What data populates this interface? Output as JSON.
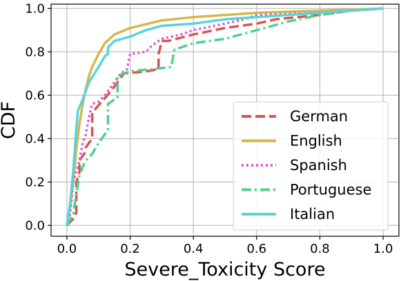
{
  "chart_data": {
    "type": "line",
    "xlabel": "Severe_Toxicity Score",
    "ylabel": "CDF",
    "xlim": [
      -0.05,
      1.05
    ],
    "ylim": [
      -0.05,
      1.02
    ],
    "xticks": [
      0.0,
      0.2,
      0.4,
      0.6,
      0.8,
      1.0
    ],
    "yticks": [
      0.0,
      0.2,
      0.4,
      0.6,
      0.8,
      1.0
    ],
    "xtick_labels": [
      "0.0",
      "0.2",
      "0.4",
      "0.6",
      "0.8",
      "1.0"
    ],
    "ytick_labels": [
      "0.0",
      "0.2",
      "0.4",
      "0.6",
      "0.8",
      "1.0"
    ],
    "grid": true,
    "legend_position": "bottom-right",
    "series": [
      {
        "name": "German",
        "color": "#d9534f",
        "style": "dashed",
        "points": [
          [
            0.0,
            0.0
          ],
          [
            0.02,
            0.03
          ],
          [
            0.03,
            0.06
          ],
          [
            0.03,
            0.2
          ],
          [
            0.035,
            0.22
          ],
          [
            0.04,
            0.25
          ],
          [
            0.04,
            0.3
          ],
          [
            0.055,
            0.33
          ],
          [
            0.06,
            0.36
          ],
          [
            0.08,
            0.4
          ],
          [
            0.08,
            0.52
          ],
          [
            0.14,
            0.62
          ],
          [
            0.17,
            0.68
          ],
          [
            0.18,
            0.7
          ],
          [
            0.25,
            0.71
          ],
          [
            0.29,
            0.72
          ],
          [
            0.29,
            0.79
          ],
          [
            0.3,
            0.85
          ],
          [
            0.32,
            0.85
          ],
          [
            0.4,
            0.88
          ],
          [
            0.5,
            0.91
          ],
          [
            0.6,
            0.93
          ],
          [
            0.66,
            0.95
          ],
          [
            0.8,
            0.97
          ],
          [
            0.9,
            0.99
          ],
          [
            1.0,
            1.0
          ]
        ]
      },
      {
        "name": "English",
        "color": "#d4b84a",
        "style": "solid",
        "points": [
          [
            0.0,
            0.0
          ],
          [
            0.01,
            0.08
          ],
          [
            0.02,
            0.2
          ],
          [
            0.03,
            0.35
          ],
          [
            0.04,
            0.47
          ],
          [
            0.05,
            0.56
          ],
          [
            0.06,
            0.63
          ],
          [
            0.07,
            0.69
          ],
          [
            0.08,
            0.73
          ],
          [
            0.1,
            0.79
          ],
          [
            0.12,
            0.84
          ],
          [
            0.15,
            0.88
          ],
          [
            0.2,
            0.91
          ],
          [
            0.3,
            0.945
          ],
          [
            0.4,
            0.96
          ],
          [
            0.5,
            0.97
          ],
          [
            0.6,
            0.98
          ],
          [
            0.7,
            0.985
          ],
          [
            0.8,
            0.99
          ],
          [
            0.9,
            0.995
          ],
          [
            1.0,
            1.0
          ]
        ]
      },
      {
        "name": "Spanish",
        "color": "#d95bd9",
        "style": "dotted",
        "points": [
          [
            0.0,
            0.0
          ],
          [
            0.01,
            0.05
          ],
          [
            0.02,
            0.2
          ],
          [
            0.04,
            0.3
          ],
          [
            0.05,
            0.38
          ],
          [
            0.06,
            0.42
          ],
          [
            0.07,
            0.5
          ],
          [
            0.08,
            0.56
          ],
          [
            0.1,
            0.57
          ],
          [
            0.12,
            0.6
          ],
          [
            0.14,
            0.64
          ],
          [
            0.17,
            0.7
          ],
          [
            0.19,
            0.72
          ],
          [
            0.2,
            0.79
          ],
          [
            0.25,
            0.8
          ],
          [
            0.27,
            0.83
          ],
          [
            0.3,
            0.86
          ],
          [
            0.33,
            0.87
          ],
          [
            0.36,
            0.88
          ],
          [
            0.4,
            0.9
          ],
          [
            0.5,
            0.93
          ],
          [
            0.56,
            0.95
          ],
          [
            0.6,
            0.97
          ],
          [
            0.8,
            0.98
          ],
          [
            1.0,
            1.0
          ]
        ]
      },
      {
        "name": "Portuguese",
        "color": "#4fd18b",
        "style": "dashdot",
        "points": [
          [
            0.0,
            0.0
          ],
          [
            0.02,
            0.05
          ],
          [
            0.03,
            0.15
          ],
          [
            0.04,
            0.23
          ],
          [
            0.05,
            0.27
          ],
          [
            0.06,
            0.3
          ],
          [
            0.08,
            0.33
          ],
          [
            0.1,
            0.38
          ],
          [
            0.13,
            0.44
          ],
          [
            0.13,
            0.56
          ],
          [
            0.16,
            0.59
          ],
          [
            0.16,
            0.69
          ],
          [
            0.2,
            0.71
          ],
          [
            0.33,
            0.73
          ],
          [
            0.34,
            0.81
          ],
          [
            0.4,
            0.84
          ],
          [
            0.5,
            0.86
          ],
          [
            0.6,
            0.9
          ],
          [
            0.7,
            0.94
          ],
          [
            0.8,
            0.97
          ],
          [
            0.9,
            0.99
          ],
          [
            1.0,
            1.0
          ]
        ]
      },
      {
        "name": "Italian",
        "color": "#58d3dc",
        "style": "solid",
        "points": [
          [
            0.0,
            0.0
          ],
          [
            0.01,
            0.1
          ],
          [
            0.02,
            0.25
          ],
          [
            0.03,
            0.45
          ],
          [
            0.035,
            0.53
          ],
          [
            0.05,
            0.58
          ],
          [
            0.07,
            0.66
          ],
          [
            0.1,
            0.73
          ],
          [
            0.12,
            0.78
          ],
          [
            0.13,
            0.79
          ],
          [
            0.13,
            0.82
          ],
          [
            0.15,
            0.85
          ],
          [
            0.2,
            0.87
          ],
          [
            0.25,
            0.9
          ],
          [
            0.3,
            0.92
          ],
          [
            0.4,
            0.93
          ],
          [
            0.5,
            0.95
          ],
          [
            0.6,
            0.96
          ],
          [
            0.7,
            0.97
          ],
          [
            0.8,
            0.98
          ],
          [
            0.9,
            0.99
          ],
          [
            1.0,
            1.0
          ]
        ]
      }
    ]
  }
}
